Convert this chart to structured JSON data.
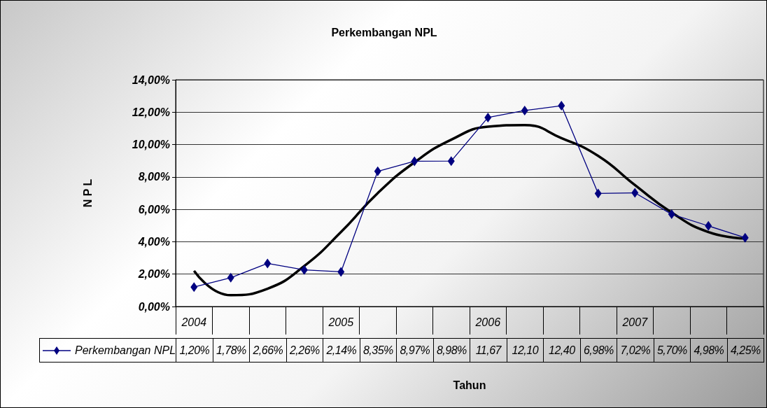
{
  "chart_data": {
    "type": "line",
    "title": "Perkembangan NPL",
    "xlabel": "Tahun",
    "ylabel": "N P L",
    "categories": [
      "2004",
      null,
      null,
      null,
      "2005",
      null,
      null,
      null,
      "2006",
      null,
      null,
      null,
      "2007",
      null,
      null,
      null
    ],
    "series": [
      {
        "name": "Perkembangan NPL",
        "color": "#000080",
        "marker": "diamond",
        "values": [
          1.2,
          1.78,
          2.66,
          2.26,
          2.14,
          8.35,
          8.97,
          8.98,
          11.67,
          12.1,
          12.4,
          6.98,
          7.02,
          5.7,
          4.98,
          4.25
        ],
        "value_labels": [
          "1,20%",
          "1,78%",
          "2,66%",
          "2,26%",
          "2,14%",
          "8,35%",
          "8,97%",
          "8,98%",
          "11,67",
          "12,10",
          "12,40",
          "6,98%",
          "7,02%",
          "5,70%",
          "4,98%",
          "4,25%"
        ]
      },
      {
        "type": "line",
        "color": "#000000",
        "marker": "none",
        "values": [
          2.2,
          0.7,
          1.1,
          2.5,
          4.6,
          7.0,
          8.9,
          10.3,
          11.1,
          11.2,
          10.4,
          9.3,
          7.5,
          5.8,
          4.6,
          4.2
        ]
      }
    ],
    "ylim": [
      0,
      14
    ],
    "yticks": [
      {
        "value": 0,
        "label": "0,00%"
      },
      {
        "value": 2,
        "label": "2,00%"
      },
      {
        "value": 4,
        "label": "4,00%"
      },
      {
        "value": 6,
        "label": "6,00%"
      },
      {
        "value": 8,
        "label": "8,00%"
      },
      {
        "value": 10,
        "label": "10,00%"
      },
      {
        "value": 12,
        "label": "12,00%"
      },
      {
        "value": 14,
        "label": "14,00%"
      }
    ],
    "grid": "y",
    "legend": "bottom"
  }
}
